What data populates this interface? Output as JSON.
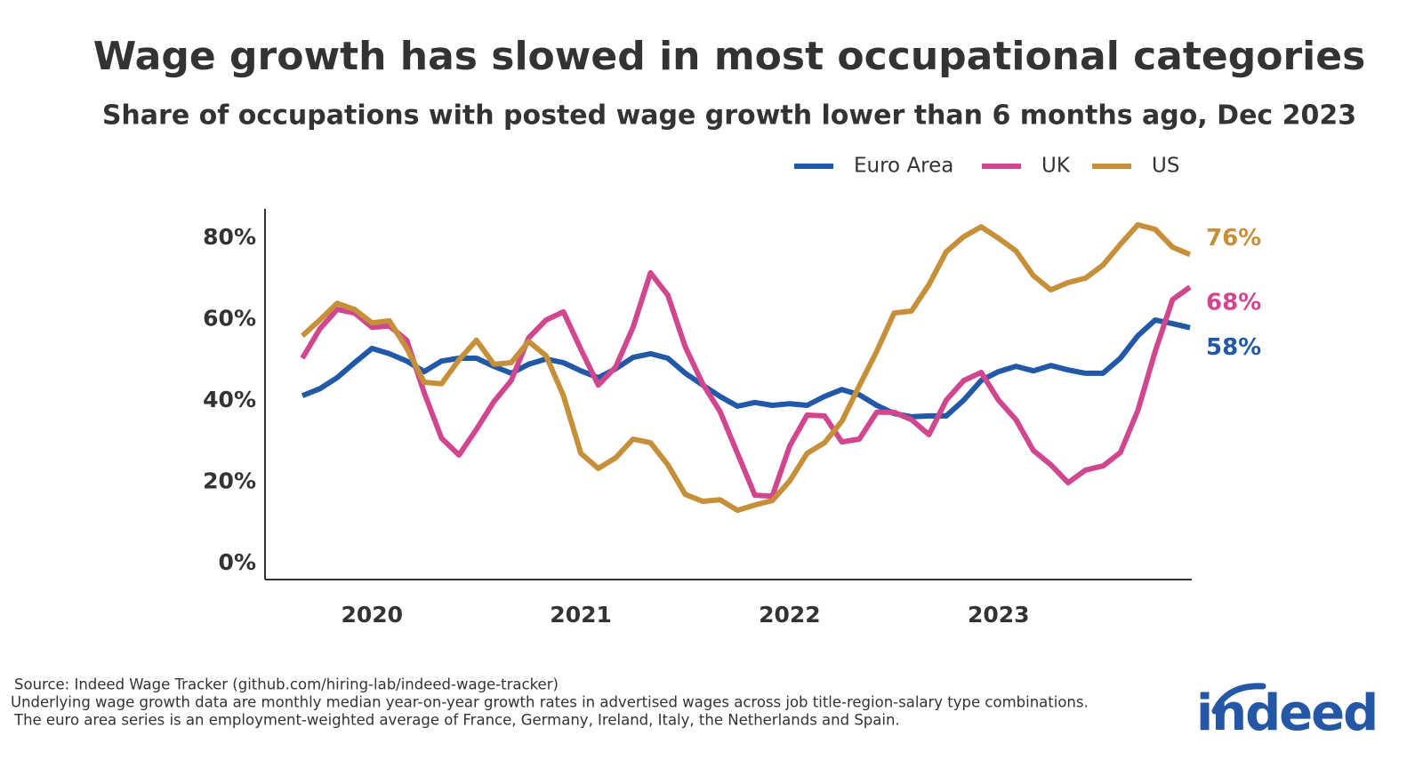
{
  "chart_data": {
    "type": "line",
    "title": "Wage growth has slowed in most occupational categories",
    "subtitle": "Share of occupations with posted wage growth lower than 6 months ago, Dec 2023",
    "categories": [
      null,
      null,
      null,
      null,
      "2020",
      null,
      null,
      null,
      null,
      null,
      null,
      null,
      null,
      null,
      null,
      null,
      "2021",
      null,
      null,
      null,
      null,
      null,
      null,
      null,
      null,
      null,
      null,
      null,
      "2022",
      null,
      null,
      null,
      null,
      null,
      null,
      null,
      null,
      null,
      null,
      null,
      "2023",
      null,
      null,
      null,
      null,
      null,
      null,
      null,
      null,
      null,
      null,
      null
    ],
    "series": [
      {
        "name": "Euro Area",
        "color": "#2158a8",
        "values": [
          41.3,
          43,
          45.7,
          49.4,
          52.9,
          51.6,
          49.8,
          47.2,
          49.8,
          50.5,
          50.5,
          48.5,
          46.8,
          49,
          50.3,
          49.4,
          47.4,
          45.7,
          47.9,
          50.7,
          51.6,
          50.5,
          46.8,
          43.9,
          41.1,
          38.7,
          39.6,
          38.9,
          39.3,
          38.9,
          41.1,
          42.8,
          41.5,
          38.9,
          36.9,
          36.1,
          36.3,
          36.3,
          40.2,
          45,
          47.2,
          48.5,
          47.4,
          48.7,
          47.6,
          46.8,
          46.8,
          50.5,
          56,
          59.9,
          59,
          58
        ],
        "value_labels": [
          null,
          null,
          null,
          null,
          null,
          null,
          null,
          null,
          null,
          null,
          null,
          null,
          null,
          null,
          null,
          null,
          null,
          null,
          null,
          null,
          null,
          null,
          null,
          null,
          null,
          null,
          null,
          null,
          null,
          null,
          null,
          null,
          null,
          null,
          null,
          null,
          null,
          null,
          null,
          null,
          null,
          null,
          null,
          null,
          null,
          null,
          null,
          null,
          null,
          null,
          null,
          "58%"
        ]
      },
      {
        "name": "UK",
        "color": "#d1478f",
        "values": [
          50.5,
          57.7,
          62.5,
          61.6,
          58.1,
          58.4,
          54.9,
          42,
          30.8,
          26.7,
          33,
          39.8,
          45,
          55.5,
          59.9,
          61.9,
          52.7,
          43.9,
          48.3,
          58.1,
          71.5,
          66,
          53.3,
          44.2,
          37.4,
          27.1,
          16.8,
          16.6,
          28.9,
          36.5,
          36.3,
          29.9,
          30.6,
          37.2,
          37.2,
          35.4,
          31.7,
          40.2,
          45,
          47,
          40.2,
          35.4,
          27.8,
          24.3,
          19.9,
          23,
          24,
          27.3,
          37.6,
          52.2,
          64.9,
          68
        ],
        "value_labels": [
          null,
          null,
          null,
          null,
          null,
          null,
          null,
          null,
          null,
          null,
          null,
          null,
          null,
          null,
          null,
          null,
          null,
          null,
          null,
          null,
          null,
          null,
          null,
          null,
          null,
          null,
          null,
          null,
          null,
          null,
          null,
          null,
          null,
          null,
          null,
          null,
          null,
          null,
          null,
          null,
          null,
          null,
          null,
          null,
          null,
          null,
          null,
          null,
          null,
          null,
          null,
          "68%"
        ]
      },
      {
        "name": "US",
        "color": "#c68f3a",
        "values": [
          56,
          59.9,
          64,
          62.5,
          59.2,
          59.7,
          52.9,
          44.6,
          44.2,
          50.1,
          54.9,
          49,
          49.4,
          54.6,
          51.1,
          41.3,
          27.1,
          23.4,
          26,
          30.6,
          29.7,
          24.3,
          17,
          15.3,
          15.7,
          13.1,
          14.4,
          15.5,
          20.3,
          27.1,
          29.7,
          35,
          43.7,
          52.2,
          61.6,
          62.1,
          68.6,
          76.7,
          80.4,
          82.8,
          80,
          76.9,
          70.8,
          67.3,
          69.1,
          70.2,
          73.4,
          78.5,
          83.3,
          82.2,
          77.8,
          76
        ],
        "value_labels": [
          null,
          null,
          null,
          null,
          null,
          null,
          null,
          null,
          null,
          null,
          null,
          null,
          null,
          null,
          null,
          null,
          null,
          null,
          null,
          null,
          null,
          null,
          null,
          null,
          null,
          null,
          null,
          null,
          null,
          null,
          null,
          null,
          null,
          null,
          null,
          null,
          null,
          null,
          null,
          null,
          null,
          null,
          null,
          null,
          null,
          null,
          null,
          null,
          null,
          null,
          null,
          "76%"
        ]
      }
    ],
    "ylim": [
      -4,
      87
    ],
    "yticks": [
      {
        "value": 0,
        "label": "0%"
      },
      {
        "value": 20,
        "label": "20%"
      },
      {
        "value": 40,
        "label": "40%"
      },
      {
        "value": 60,
        "label": "60%"
      },
      {
        "value": 80,
        "label": "80%"
      }
    ],
    "grid": false,
    "legend": "top-right",
    "notes": [
      "Source: Indeed Wage Tracker (github.com/hiring-lab/indeed-wage-tracker)",
      "Underlying wage growth data are monthly median year-on-year growth rates in advertised wages across job title-region-salary type combinations.",
      "The euro area series is an employment-weighted average of France, Germany, Ireland, Italy, the Netherlands and Spain."
    ],
    "logo": "indeed"
  }
}
